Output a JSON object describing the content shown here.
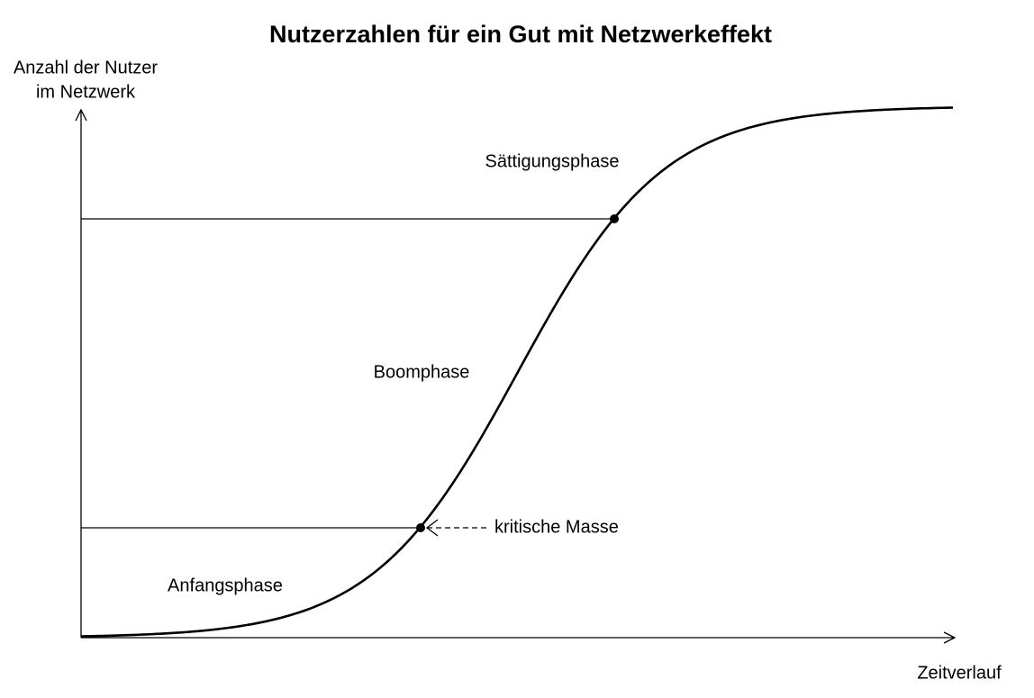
{
  "title": "Nutzerzahlen für ein Gut mit Netzwerkeffekt",
  "y_axis_label": [
    "Anzahl der Nutzer",
    "im Netzwerk"
  ],
  "x_axis_label": "Zeitverlauf",
  "phases": [
    "Sättigungsphase",
    "Boomphase",
    "Anfangsphase"
  ],
  "annotation": "kritische Masse"
}
